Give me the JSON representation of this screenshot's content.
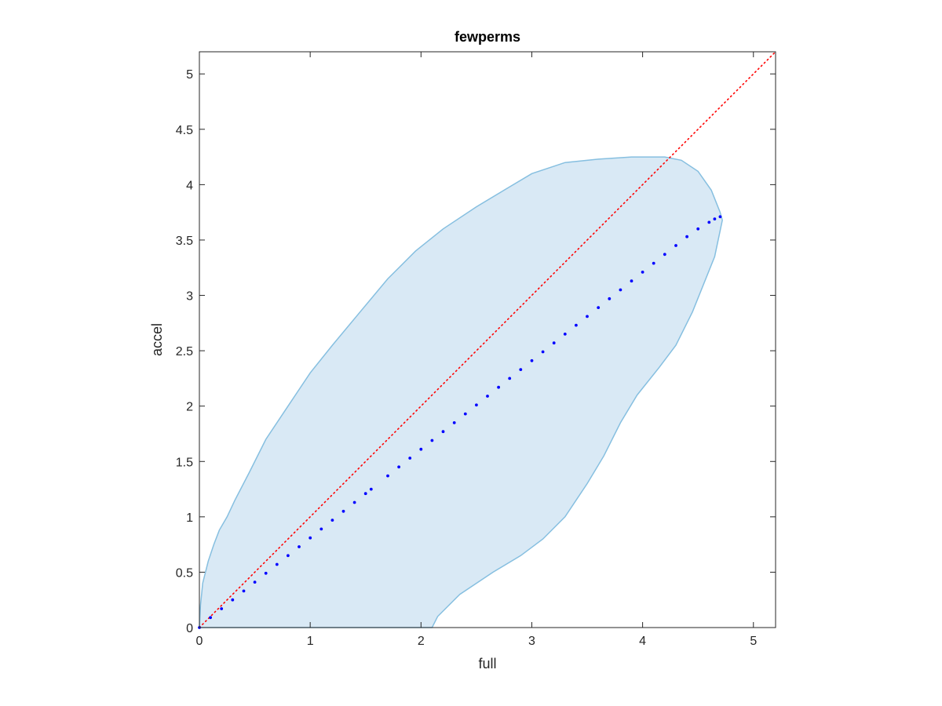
{
  "chart_data": {
    "type": "scatter",
    "title": "fewperms",
    "xlabel": "full",
    "ylabel": "accel",
    "xlim": [
      0,
      5.2
    ],
    "ylim": [
      0,
      5.2
    ],
    "xticks": [
      0,
      1,
      2,
      3,
      4,
      5
    ],
    "xtick_labels": [
      "0",
      "1",
      "2",
      "3",
      "4",
      "5"
    ],
    "yticks": [
      0,
      0.5,
      1,
      1.5,
      2,
      2.5,
      3,
      3.5,
      4,
      4.5,
      5
    ],
    "ytick_labels": [
      "0",
      "0.5",
      "1",
      "1.5",
      "2",
      "2.5",
      "3",
      "3.5",
      "4",
      "4.5",
      "5"
    ],
    "grid": false,
    "colors": {
      "region_fill": "#d9e9f5",
      "region_edge": "#86bfe0",
      "points": "#0000ff",
      "reference_line": "#ff0000",
      "axes": "#262626"
    },
    "region_boundary": [
      [
        0,
        0
      ],
      [
        0.01,
        0.2
      ],
      [
        0.03,
        0.4
      ],
      [
        0.08,
        0.6
      ],
      [
        0.13,
        0.75
      ],
      [
        0.18,
        0.88
      ],
      [
        0.25,
        1.0
      ],
      [
        0.32,
        1.15
      ],
      [
        0.45,
        1.4
      ],
      [
        0.6,
        1.7
      ],
      [
        0.8,
        2.0
      ],
      [
        1.0,
        2.3
      ],
      [
        1.2,
        2.55
      ],
      [
        1.45,
        2.85
      ],
      [
        1.7,
        3.15
      ],
      [
        1.95,
        3.4
      ],
      [
        2.2,
        3.6
      ],
      [
        2.5,
        3.8
      ],
      [
        2.75,
        3.95
      ],
      [
        3.0,
        4.1
      ],
      [
        3.3,
        4.2
      ],
      [
        3.6,
        4.23
      ],
      [
        3.9,
        4.25
      ],
      [
        4.2,
        4.25
      ],
      [
        4.35,
        4.22
      ],
      [
        4.5,
        4.12
      ],
      [
        4.62,
        3.95
      ],
      [
        4.7,
        3.75
      ],
      [
        4.72,
        3.68
      ],
      [
        4.65,
        3.35
      ],
      [
        4.45,
        2.85
      ],
      [
        4.3,
        2.55
      ],
      [
        4.15,
        2.35
      ],
      [
        3.95,
        2.1
      ],
      [
        3.8,
        1.85
      ],
      [
        3.65,
        1.55
      ],
      [
        3.5,
        1.3
      ],
      [
        3.3,
        1.0
      ],
      [
        3.1,
        0.8
      ],
      [
        2.9,
        0.65
      ],
      [
        2.65,
        0.5
      ],
      [
        2.35,
        0.3
      ],
      [
        2.15,
        0.1
      ],
      [
        2.1,
        0
      ]
    ],
    "series": [
      {
        "x": [
          0,
          0.1,
          0.2,
          0.3,
          0.4,
          0.5,
          0.6,
          0.7,
          0.8,
          0.9,
          1.0,
          1.1,
          1.2,
          1.3,
          1.4,
          1.5,
          1.55,
          1.7,
          1.8,
          1.9,
          2.0,
          2.1,
          2.2,
          2.3,
          2.4,
          2.5,
          2.6,
          2.7,
          2.8,
          2.9,
          3.0,
          3.1,
          3.2,
          3.3,
          3.4,
          3.5,
          3.6,
          3.7,
          3.8,
          3.9,
          4.0,
          4.1,
          4.2,
          4.3,
          4.4,
          4.5,
          4.6,
          4.65,
          4.7
        ],
        "y": [
          0,
          0.09,
          0.17,
          0.25,
          0.33,
          0.41,
          0.49,
          0.57,
          0.65,
          0.73,
          0.81,
          0.89,
          0.97,
          1.05,
          1.13,
          1.21,
          1.25,
          1.37,
          1.45,
          1.53,
          1.61,
          1.69,
          1.77,
          1.85,
          1.93,
          2.01,
          2.09,
          2.17,
          2.25,
          2.33,
          2.41,
          2.49,
          2.57,
          2.65,
          2.73,
          2.81,
          2.89,
          2.97,
          3.05,
          3.13,
          3.21,
          3.29,
          3.37,
          3.45,
          3.53,
          3.6,
          3.66,
          3.69,
          3.71
        ]
      }
    ],
    "reference_line": {
      "x": [
        0,
        5.2
      ],
      "y": [
        0,
        5.2
      ],
      "style": "dotted"
    }
  }
}
